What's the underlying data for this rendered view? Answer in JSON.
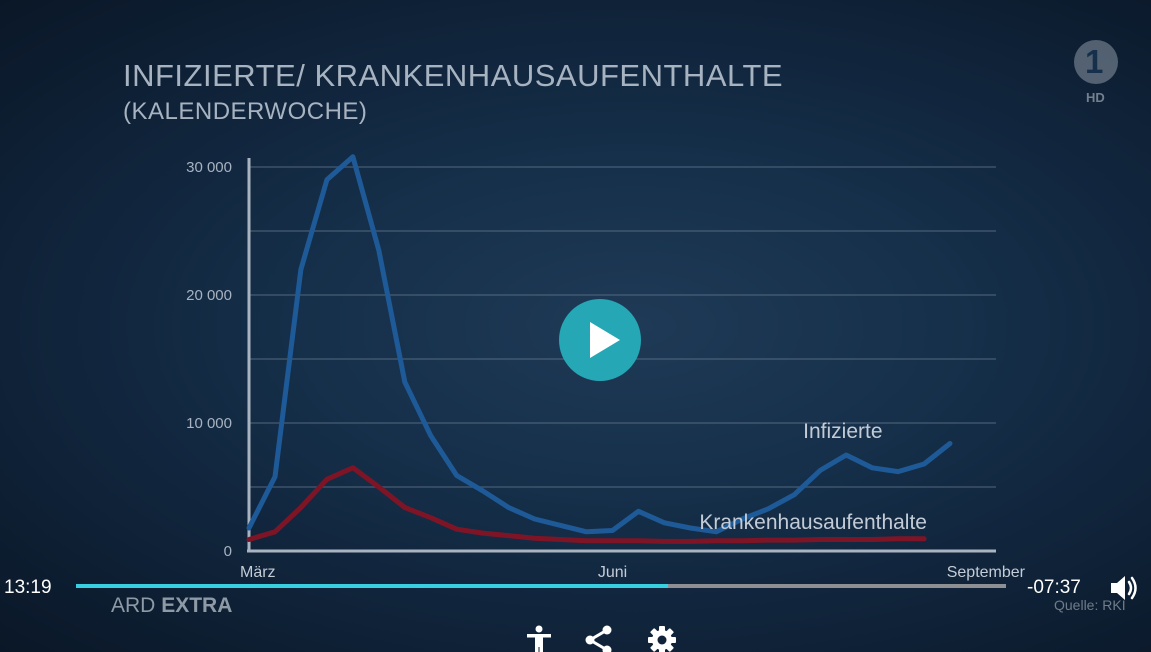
{
  "player": {
    "time_current": "13:19",
    "time_remaining": "-07:37",
    "progress": 0.637,
    "logo_label": "HD",
    "logo_mark": "1",
    "brand_prefix": "ARD",
    "brand_suffix": "EXTRA",
    "source": "Quelle: RKI",
    "icons": {
      "play": "play-icon",
      "volume": "volume-icon",
      "accessibility": "accessibility-icon",
      "share": "share-icon",
      "settings": "gear-icon"
    },
    "colors": {
      "play_button": "#25a7b5",
      "progress_fill": "#38d0e0",
      "progress_track": "#8d8f92"
    }
  },
  "chart_data": {
    "type": "line",
    "title": "INFIZIERTE/ KRANKENHAUSAUFENTHALTE",
    "subtitle": "(KALENDERWOCHE)",
    "ylim": [
      0,
      30000
    ],
    "xlim": [
      0,
      28
    ],
    "y_ticks": [
      {
        "value": 0,
        "label": "0"
      },
      {
        "value": 10000,
        "label": "10 000"
      },
      {
        "value": 20000,
        "label": "20 000"
      },
      {
        "value": 30000,
        "label": "30 000"
      }
    ],
    "y_gridlines": [
      5000,
      10000,
      15000,
      20000,
      25000,
      30000
    ],
    "x_ticks": [
      {
        "value": 0,
        "label": "März"
      },
      {
        "value": 14,
        "label": "Juni"
      },
      {
        "value": 28,
        "label": "September"
      }
    ],
    "grid": true,
    "series": [
      {
        "name": "Infizierte",
        "color": "#1f5a98",
        "label_at_index": 23,
        "x": [
          0,
          1,
          2,
          3,
          4,
          5,
          6,
          7,
          8,
          9,
          10,
          11,
          12,
          13,
          14,
          15,
          16,
          17,
          18,
          19,
          20,
          21,
          22,
          23,
          24,
          25,
          26,
          27
        ],
        "values": [
          1800,
          5800,
          22000,
          29000,
          30800,
          23500,
          13200,
          9000,
          5900,
          4700,
          3400,
          2500,
          2000,
          1500,
          1600,
          3100,
          2200,
          1800,
          1500,
          2500,
          3300,
          4400,
          6300,
          7500,
          6500,
          6200,
          6800,
          8400
        ]
      },
      {
        "name": "Krankenhausaufenthalte",
        "color": "#7e1526",
        "label_at_index": 19,
        "x": [
          0,
          1,
          2,
          3,
          4,
          5,
          6,
          7,
          8,
          9,
          10,
          11,
          12,
          13,
          14,
          15,
          16,
          17,
          18,
          19,
          20,
          21,
          22,
          23,
          24,
          25,
          26
        ],
        "values": [
          900,
          1500,
          3400,
          5600,
          6500,
          5000,
          3400,
          2600,
          1700,
          1400,
          1200,
          1000,
          900,
          800,
          800,
          800,
          750,
          750,
          800,
          800,
          850,
          850,
          900,
          900,
          900,
          950,
          950
        ]
      }
    ]
  }
}
